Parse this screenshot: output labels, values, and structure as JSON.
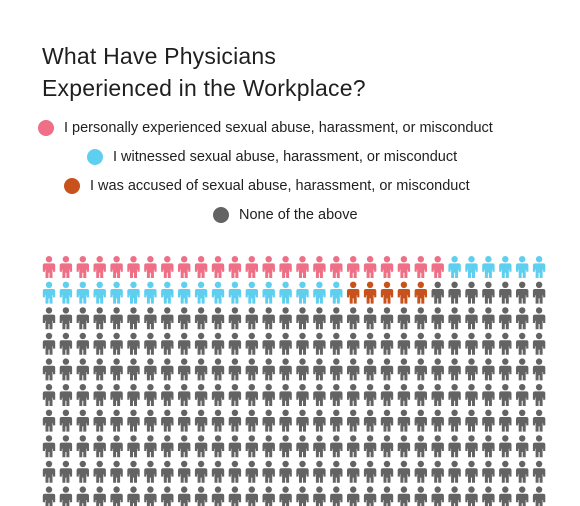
{
  "chart_data": {
    "type": "pictogram",
    "title_lines": [
      "What Have Physicians",
      "Experienced in the Workplace?"
    ],
    "columns": 30,
    "rows": 10,
    "legend_placement": "top",
    "categories": [
      {
        "label": "I personally experienced sexual abuse, harassment, or misconduct",
        "count": 24,
        "color": "#ee6f86"
      },
      {
        "label": "I witnessed sexual abuse, harassment, or misconduct",
        "count": 24,
        "color": "#5fcff0"
      },
      {
        "label": "I was accused of sexual abuse, harassment, or misconduct",
        "count": 5,
        "color": "#c8521c"
      },
      {
        "label": "None of the above",
        "count": 247,
        "color": "#636363"
      }
    ]
  }
}
